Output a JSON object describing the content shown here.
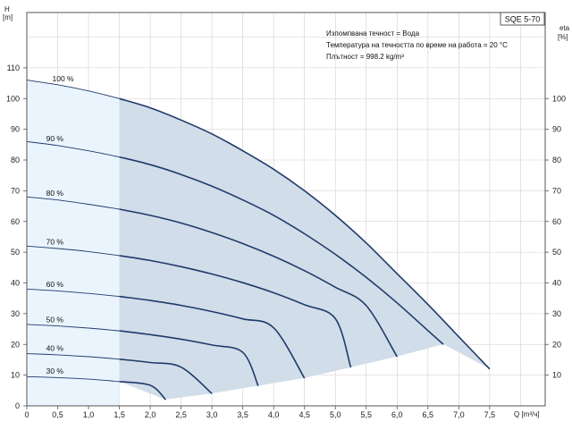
{
  "chart_data": {
    "type": "line",
    "badge": "SQE 5-70",
    "info_lines": [
      "Изпомпвана течност = Вода",
      "Температура на течността по време на работа = 20 °C",
      "Плътност = 998.2 kg/m³"
    ],
    "y_title": "H",
    "y_unit": "[m]",
    "y2_title": "eta",
    "y2_unit": "[%]",
    "x_label": "Q [m³/ч]",
    "xlim": [
      0,
      8.4
    ],
    "ylim": [
      0,
      128
    ],
    "x_ticks": [
      "0",
      "0,5",
      "1,0",
      "1,5",
      "2,0",
      "2,5",
      "3,0",
      "3,5",
      "4,0",
      "4,5",
      "5,0",
      "5,5",
      "6,0",
      "6,5",
      "7,0",
      "7,5"
    ],
    "y_ticks": [
      "0",
      "10",
      "20",
      "30",
      "40",
      "50",
      "60",
      "70",
      "80",
      "90",
      "100",
      "110"
    ],
    "y2_ticks": [
      "10",
      "20",
      "30",
      "40",
      "50",
      "60",
      "70",
      "80",
      "90",
      "100"
    ],
    "grid": true,
    "shaded_region": {
      "q_min": 1.5,
      "q_max_curve": "100 %"
    },
    "light_region": {
      "q_min": 0,
      "q_max": 1.5
    },
    "series": [
      {
        "name": "100 %",
        "q_max": 7.5,
        "points": [
          [
            0,
            106
          ],
          [
            0.5,
            104.5
          ],
          [
            1.0,
            102.5
          ],
          [
            1.5,
            100
          ],
          [
            2.0,
            97
          ],
          [
            2.5,
            93
          ],
          [
            3.0,
            88.5
          ],
          [
            3.5,
            83
          ],
          [
            4.0,
            77
          ],
          [
            4.5,
            70
          ],
          [
            5.0,
            62
          ],
          [
            5.5,
            53
          ],
          [
            6.0,
            43
          ],
          [
            6.5,
            33
          ],
          [
            7.0,
            22.5
          ],
          [
            7.5,
            12
          ]
        ]
      },
      {
        "name": "90 %",
        "q_max": 6.75,
        "points": [
          [
            0,
            86
          ],
          [
            0.5,
            84.7
          ],
          [
            1.0,
            83
          ],
          [
            1.5,
            81
          ],
          [
            2.0,
            78.5
          ],
          [
            2.5,
            75.3
          ],
          [
            3.0,
            71.5
          ],
          [
            3.5,
            67
          ],
          [
            4.0,
            62
          ],
          [
            4.5,
            56
          ],
          [
            5.0,
            49.3
          ],
          [
            5.5,
            41.8
          ],
          [
            6.0,
            33.5
          ],
          [
            6.5,
            24.5
          ],
          [
            6.75,
            20
          ]
        ]
      },
      {
        "name": "80 %",
        "q_max": 6.0,
        "points": [
          [
            0,
            68
          ],
          [
            0.5,
            67
          ],
          [
            1.0,
            65.6
          ],
          [
            1.5,
            64
          ],
          [
            2.0,
            62
          ],
          [
            2.5,
            59.5
          ],
          [
            3.0,
            56.4
          ],
          [
            3.5,
            52.8
          ],
          [
            4.0,
            48.7
          ],
          [
            4.5,
            44
          ],
          [
            5.0,
            38.6
          ],
          [
            5.5,
            32.6
          ],
          [
            6.0,
            16
          ]
        ]
      },
      {
        "name": "70 %",
        "q_max": 5.25,
        "points": [
          [
            0,
            52
          ],
          [
            0.5,
            51.2
          ],
          [
            1.0,
            50.2
          ],
          [
            1.5,
            48.9
          ],
          [
            2.0,
            47.3
          ],
          [
            2.5,
            45.3
          ],
          [
            3.0,
            42.9
          ],
          [
            3.5,
            40.1
          ],
          [
            4.0,
            36.8
          ],
          [
            4.5,
            32.9
          ],
          [
            5.0,
            28.4
          ],
          [
            5.25,
            12.5
          ]
        ]
      },
      {
        "name": "60 %",
        "q_max": 4.5,
        "points": [
          [
            0,
            38
          ],
          [
            0.5,
            37.4
          ],
          [
            1.0,
            36.6
          ],
          [
            1.5,
            35.6
          ],
          [
            2.0,
            34.3
          ],
          [
            2.5,
            32.7
          ],
          [
            3.0,
            30.7
          ],
          [
            3.5,
            28.3
          ],
          [
            4.0,
            25.4
          ],
          [
            4.5,
            9
          ]
        ]
      },
      {
        "name": "50 %",
        "q_max": 3.75,
        "points": [
          [
            0,
            26.5
          ],
          [
            0.5,
            26
          ],
          [
            1.0,
            25.3
          ],
          [
            1.5,
            24.4
          ],
          [
            2.0,
            23.2
          ],
          [
            2.5,
            21.7
          ],
          [
            3.0,
            19.8
          ],
          [
            3.5,
            17.4
          ],
          [
            3.75,
            6.5
          ]
        ]
      },
      {
        "name": "40 %",
        "q_max": 3.0,
        "points": [
          [
            0,
            17
          ],
          [
            0.5,
            16.6
          ],
          [
            1.0,
            16
          ],
          [
            1.5,
            15.2
          ],
          [
            2.0,
            14.1
          ],
          [
            2.5,
            12.6
          ],
          [
            3.0,
            4
          ]
        ]
      },
      {
        "name": "30 %",
        "q_max": 2.25,
        "points": [
          [
            0,
            9.5
          ],
          [
            0.5,
            9.2
          ],
          [
            1.0,
            8.7
          ],
          [
            1.5,
            7.9
          ],
          [
            2.0,
            6.7
          ],
          [
            2.25,
            2
          ]
        ]
      }
    ]
  }
}
